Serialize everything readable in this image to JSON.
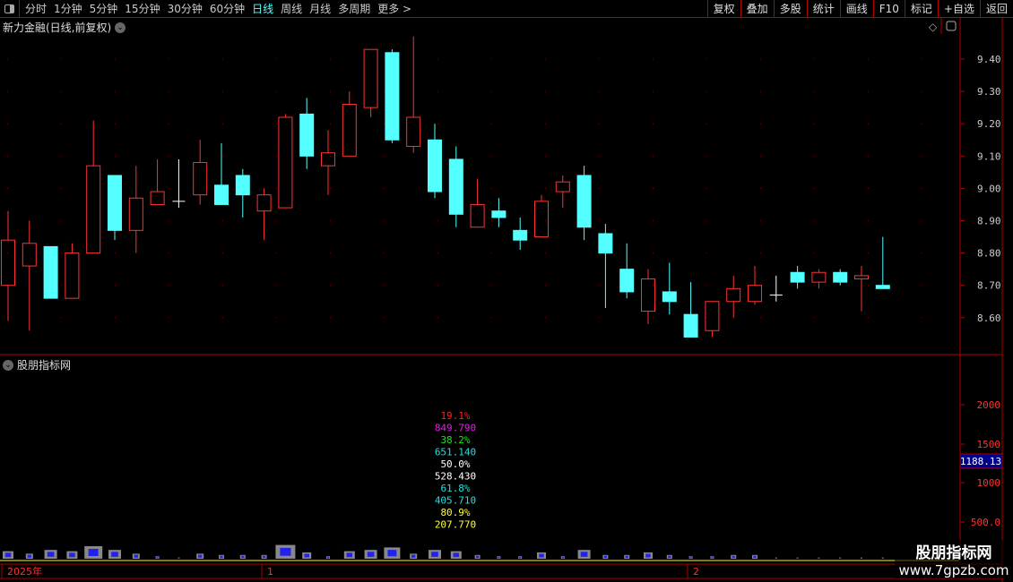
{
  "toolbar": {
    "periods": [
      "分时",
      "1分钟",
      "5分钟",
      "15分钟",
      "30分钟",
      "60分钟",
      "日线",
      "周线",
      "月线",
      "多周期",
      "更多 >"
    ],
    "active": "日线",
    "right_buttons": [
      "复权",
      "叠加",
      "多股",
      "统计",
      "画线",
      "F10",
      "标记",
      "+自选",
      "返回"
    ]
  },
  "chart": {
    "title": "新力金融(日线,前复权)",
    "indicator_title": "股朋指标网",
    "price_ticks": [
      "9.40",
      "9.30",
      "9.20",
      "9.10",
      "9.00",
      "8.90",
      "8.80",
      "8.70",
      "8.60"
    ],
    "volume_ticks": [
      "2000",
      "1500",
      "1000",
      "500.0"
    ],
    "current_value": "1188.13",
    "time_labels": [
      "2025年",
      "1",
      "2"
    ],
    "overlay_labels": [
      {
        "text": "19.1%",
        "color": "#ff2020"
      },
      {
        "text": "849.790",
        "color": "#e020e0"
      },
      {
        "text": "38.2%",
        "color": "#20e020"
      },
      {
        "text": "651.140",
        "color": "#20e0e0"
      },
      {
        "text": "50.0%",
        "color": "#ffffff"
      },
      {
        "text": "528.430",
        "color": "#ffffff"
      },
      {
        "text": "61.8%",
        "color": "#20e0e0"
      },
      {
        "text": "405.710",
        "color": "#20e0e0"
      },
      {
        "text": "80.9%",
        "color": "#ffff30"
      },
      {
        "text": "207.770",
        "color": "#ffff30"
      }
    ],
    "colors": {
      "up": "#ff3232",
      "down": "#54ffff",
      "axis": "#b00000",
      "label": "#ff3232"
    }
  },
  "chart_data": {
    "type": "candlestick",
    "ylim": [
      8.5,
      9.5
    ],
    "candles": [
      [
        8.7,
        8.84,
        8.93,
        8.59
      ],
      [
        8.76,
        8.83,
        8.9,
        8.56
      ],
      [
        8.82,
        8.66,
        8.82,
        8.66
      ],
      [
        8.66,
        8.8,
        8.83,
        8.66
      ],
      [
        8.8,
        9.07,
        9.21,
        8.8
      ],
      [
        9.04,
        8.87,
        9.04,
        8.84
      ],
      [
        8.87,
        8.97,
        9.07,
        8.8
      ],
      [
        8.95,
        8.99,
        9.09,
        8.95
      ],
      [
        8.96,
        8.96,
        9.09,
        8.94
      ],
      [
        8.98,
        9.08,
        9.15,
        8.95
      ],
      [
        9.01,
        8.95,
        9.14,
        8.95
      ],
      [
        9.04,
        8.98,
        9.06,
        8.91
      ],
      [
        8.93,
        8.98,
        9.0,
        8.84
      ],
      [
        8.94,
        9.22,
        9.23,
        8.94
      ],
      [
        9.23,
        9.1,
        9.28,
        9.06
      ],
      [
        9.07,
        9.11,
        9.18,
        8.98
      ],
      [
        9.1,
        9.26,
        9.3,
        9.1
      ],
      [
        9.25,
        9.43,
        9.43,
        9.22
      ],
      [
        9.42,
        9.15,
        9.43,
        9.14
      ],
      [
        9.13,
        9.22,
        9.47,
        9.11
      ],
      [
        9.15,
        8.99,
        9.2,
        8.97
      ],
      [
        9.09,
        8.92,
        9.13,
        8.88
      ],
      [
        8.88,
        8.95,
        9.03,
        8.88
      ],
      [
        8.93,
        8.91,
        8.97,
        8.88
      ],
      [
        8.87,
        8.84,
        8.91,
        8.81
      ],
      [
        8.85,
        8.96,
        8.98,
        8.85
      ],
      [
        8.99,
        9.02,
        9.04,
        8.94
      ],
      [
        9.04,
        8.88,
        9.07,
        8.84
      ],
      [
        8.86,
        8.8,
        8.89,
        8.63
      ],
      [
        8.75,
        8.68,
        8.83,
        8.66
      ],
      [
        8.62,
        8.72,
        8.75,
        8.58
      ],
      [
        8.68,
        8.65,
        8.77,
        8.61
      ],
      [
        8.61,
        8.54,
        8.71,
        8.54
      ],
      [
        8.56,
        8.65,
        8.65,
        8.54
      ],
      [
        8.65,
        8.69,
        8.73,
        8.6
      ],
      [
        8.65,
        8.7,
        8.76,
        8.64
      ],
      [
        8.67,
        8.67,
        8.73,
        8.65
      ],
      [
        8.74,
        8.71,
        8.76,
        8.69
      ],
      [
        8.71,
        8.74,
        8.75,
        8.69
      ],
      [
        8.74,
        8.71,
        8.75,
        8.7
      ],
      [
        8.72,
        8.73,
        8.76,
        8.62
      ],
      [
        8.7,
        8.69,
        8.85,
        8.69
      ]
    ]
  },
  "watermark": {
    "line1": "股朋指标网",
    "line2": "www.7gpzb.com"
  }
}
